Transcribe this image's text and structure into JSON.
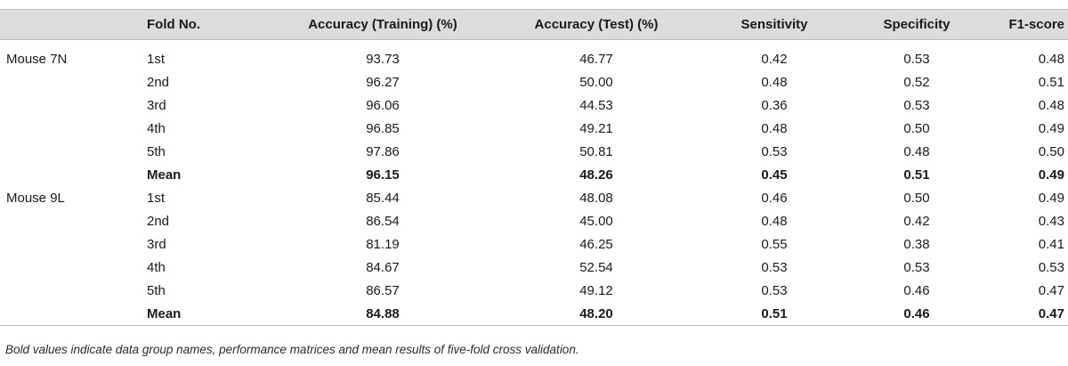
{
  "table": {
    "headers": [
      "",
      "Fold No.",
      "Accuracy (Training) (%)",
      "Accuracy (Test) (%)",
      "Sensitivity",
      "Specificity",
      "F1-score"
    ],
    "groups": [
      {
        "name": "Mouse 7N",
        "rows": [
          {
            "fold": "1st",
            "values": [
              "93.73",
              "46.77",
              "0.42",
              "0.53",
              "0.48"
            ]
          },
          {
            "fold": "2nd",
            "values": [
              "96.27",
              "50.00",
              "0.48",
              "0.52",
              "0.51"
            ]
          },
          {
            "fold": "3rd",
            "values": [
              "96.06",
              "44.53",
              "0.36",
              "0.53",
              "0.48"
            ]
          },
          {
            "fold": "4th",
            "values": [
              "96.85",
              "49.21",
              "0.48",
              "0.50",
              "0.49"
            ]
          },
          {
            "fold": "5th",
            "values": [
              "97.86",
              "50.81",
              "0.53",
              "0.48",
              "0.50"
            ]
          },
          {
            "fold": "Mean",
            "values": [
              "96.15",
              "48.26",
              "0.45",
              "0.51",
              "0.49"
            ],
            "bold": true
          }
        ]
      },
      {
        "name": "Mouse 9L",
        "rows": [
          {
            "fold": "1st",
            "values": [
              "85.44",
              "48.08",
              "0.46",
              "0.50",
              "0.49"
            ]
          },
          {
            "fold": "2nd",
            "values": [
              "86.54",
              "45.00",
              "0.48",
              "0.42",
              "0.43"
            ]
          },
          {
            "fold": "3rd",
            "values": [
              "81.19",
              "46.25",
              "0.55",
              "0.38",
              "0.41"
            ]
          },
          {
            "fold": "4th",
            "values": [
              "84.67",
              "52.54",
              "0.53",
              "0.53",
              "0.53"
            ]
          },
          {
            "fold": "5th",
            "values": [
              "86.57",
              "49.12",
              "0.53",
              "0.46",
              "0.47"
            ]
          },
          {
            "fold": "Mean",
            "values": [
              "84.88",
              "48.20",
              "0.51",
              "0.46",
              "0.47"
            ],
            "bold": true
          }
        ]
      }
    ]
  },
  "footnote": "Bold values indicate data group names, performance matrices and mean results of five-fold cross validation."
}
